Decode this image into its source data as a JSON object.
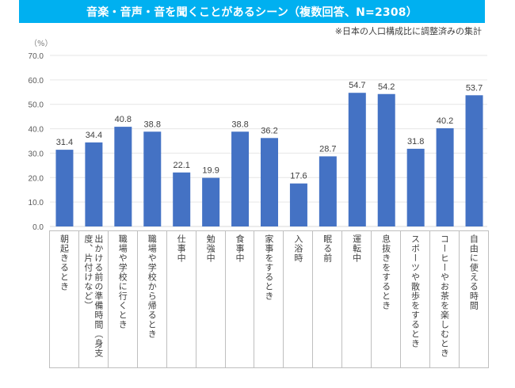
{
  "header": {
    "title": "音楽・音声・音を聞くことがあるシーン（複数回答、N=2308）",
    "note": "※日本の人口構成比に調整済みの集計",
    "unit": "（%）"
  },
  "colors": {
    "title_bg": "#00b0f0",
    "bar": "#4472c4",
    "grid": "#e6e6e6"
  },
  "chart_data": {
    "type": "bar",
    "title": "音楽・音声・音を聞くことがあるシーン（複数回答、N=2308）",
    "subtitle": "※日本の人口構成比に調整済みの集計",
    "xlabel": "",
    "ylabel": "（%）",
    "ylim": [
      0,
      70
    ],
    "yticks": [
      0,
      10,
      20,
      30,
      40,
      50,
      60,
      70
    ],
    "ytick_labels": [
      "0.0",
      "10.0",
      "20.0",
      "30.0",
      "40.0",
      "50.0",
      "60.0",
      "70.0"
    ],
    "grid": true,
    "legend": "none",
    "categories": [
      "朝起きるとき",
      "出かける前の準備時間（身支度、片付けなど）",
      "職場や学校に行くとき",
      "職場や学校から帰るとき",
      "仕事中",
      "勉強中",
      "食事中",
      "家事をするとき",
      "入浴時",
      "眠る前",
      "運転中",
      "息抜きをするとき",
      "スポーツや散歩をするとき",
      "コーヒーやお茶を楽しむとき",
      "自由に使える時間"
    ],
    "values": [
      31.4,
      34.4,
      40.8,
      38.8,
      22.1,
      19.9,
      38.8,
      36.2,
      17.6,
      28.7,
      54.7,
      54.2,
      31.8,
      40.2,
      53.7
    ],
    "data_labels": [
      "31.4",
      "34.4",
      "40.8",
      "38.8",
      "22.1",
      "19.9",
      "38.8",
      "36.2",
      "17.6",
      "28.7",
      "54.7",
      "54.2",
      "31.8",
      "40.2",
      "53.7"
    ]
  }
}
